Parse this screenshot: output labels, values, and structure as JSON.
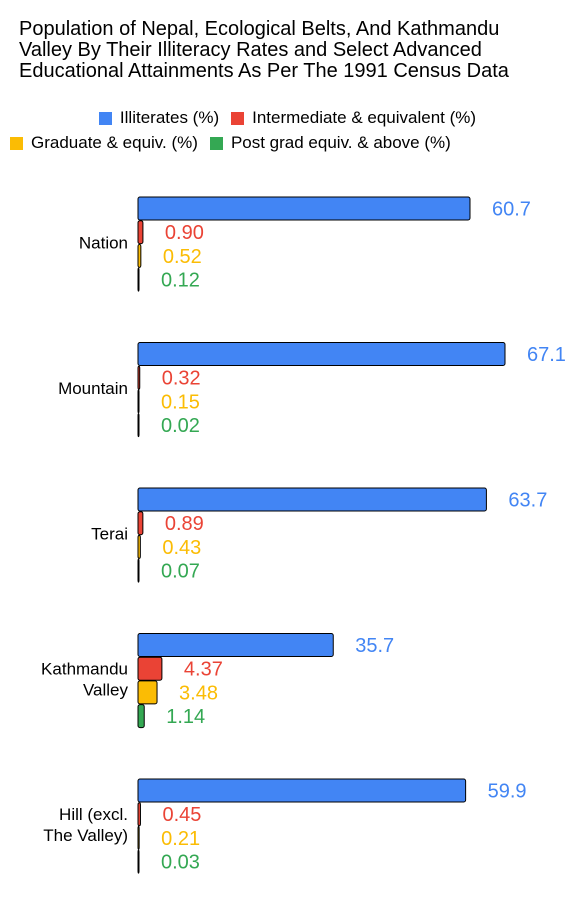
{
  "title_lines": [
    "Population of Nepal, Ecological Belts, And Kathmandu",
    "Valley By Their Illiteracy Rates and Select Advanced",
    "Educational Attainments As Per The 1991 Census Data"
  ],
  "legend": [
    {
      "label": "Illiterates (%)",
      "color": "#4285f4"
    },
    {
      "label": "Intermediate & equivalent (%)",
      "color": "#ea4335"
    },
    {
      "label": "Graduate & equiv. (%)",
      "color": "#fbbc04"
    },
    {
      "label": "Post grad equiv. & above (%)",
      "color": "#34a853"
    }
  ],
  "chart_data": {
    "type": "bar",
    "orientation": "horizontal",
    "categories": [
      "Nation",
      "Mountain",
      "Terai",
      "Kathmandu Valley",
      "Hill (excl. The Valley)"
    ],
    "category_lines": [
      [
        "Nation"
      ],
      [
        "Mountain"
      ],
      [
        "Terai"
      ],
      [
        "Kathmandu",
        "Valley"
      ],
      [
        "Hill (excl.",
        "The Valley)"
      ]
    ],
    "series": [
      {
        "name": "Illiterates (%)",
        "color": "#4285f4",
        "values": [
          60.7,
          67.1,
          63.7,
          35.7,
          59.9
        ],
        "labels": [
          "60.7",
          "67.1",
          "63.7",
          "35.7",
          "59.9"
        ]
      },
      {
        "name": "Intermediate & equivalent (%)",
        "color": "#ea4335",
        "values": [
          0.9,
          0.32,
          0.89,
          4.37,
          0.45
        ],
        "labels": [
          "0.90",
          "0.32",
          "0.89",
          "4.37",
          "0.45"
        ]
      },
      {
        "name": "Graduate & equiv. (%)",
        "color": "#fbbc04",
        "values": [
          0.52,
          0.15,
          0.43,
          3.48,
          0.21
        ],
        "labels": [
          "0.52",
          "0.15",
          "0.43",
          "3.48",
          "0.21"
        ]
      },
      {
        "name": "Post grad equiv. & above (%)",
        "color": "#34a853",
        "values": [
          0.12,
          0.02,
          0.07,
          1.14,
          0.03
        ],
        "labels": [
          "0.12",
          "0.02",
          "0.07",
          "1.14",
          "0.03"
        ]
      }
    ],
    "xlim": [
      0,
      67.1
    ],
    "grid": false,
    "legend_position": "top"
  }
}
